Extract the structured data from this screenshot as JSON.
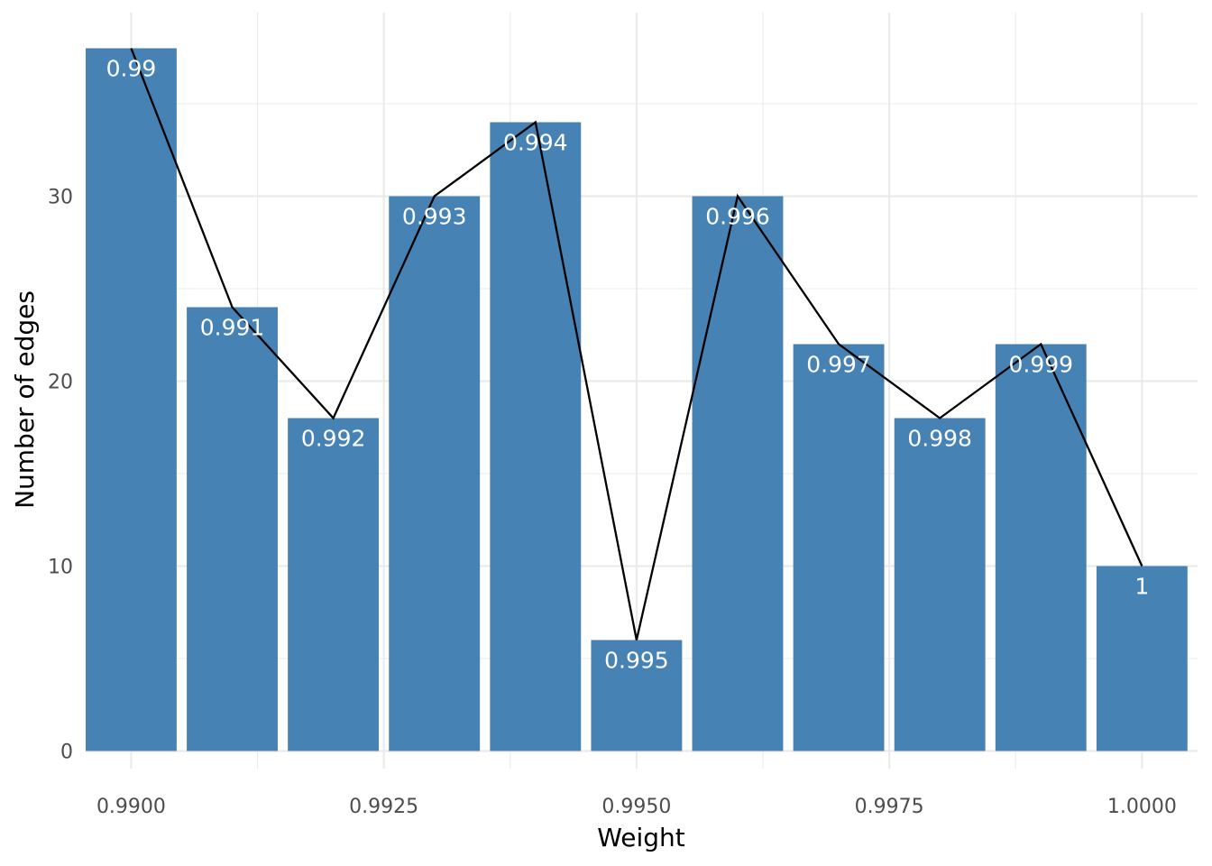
{
  "chart_data": {
    "type": "bar",
    "title": "",
    "xlabel": "Weight",
    "ylabel": "Number of edges",
    "x": [
      0.99,
      0.991,
      0.992,
      0.993,
      0.994,
      0.995,
      0.996,
      0.997,
      0.998,
      0.999,
      1.0
    ],
    "values": [
      38,
      24,
      18,
      30,
      34,
      6,
      30,
      22,
      18,
      22,
      10
    ],
    "bar_labels": [
      "0.99",
      "0.991",
      "0.992",
      "0.993",
      "0.994",
      "0.995",
      "0.996",
      "0.997",
      "0.998",
      "0.999",
      "1"
    ],
    "x_ticks": [
      0.99,
      0.9925,
      0.995,
      0.9975,
      1.0
    ],
    "x_tick_labels": [
      "0.9900",
      "0.9925",
      "0.9950",
      "0.9975",
      "1.0000"
    ],
    "y_ticks": [
      0,
      10,
      20,
      30
    ],
    "y_tick_labels": [
      "0",
      "10",
      "20",
      "30"
    ],
    "xlim": [
      0.98955,
      1.00055
    ],
    "ylim": [
      0,
      39.9
    ],
    "line_overlay": true,
    "grid": true,
    "bar_color": "#4682b4",
    "line_color": "#000000",
    "grid_color": "#ebebeb"
  }
}
